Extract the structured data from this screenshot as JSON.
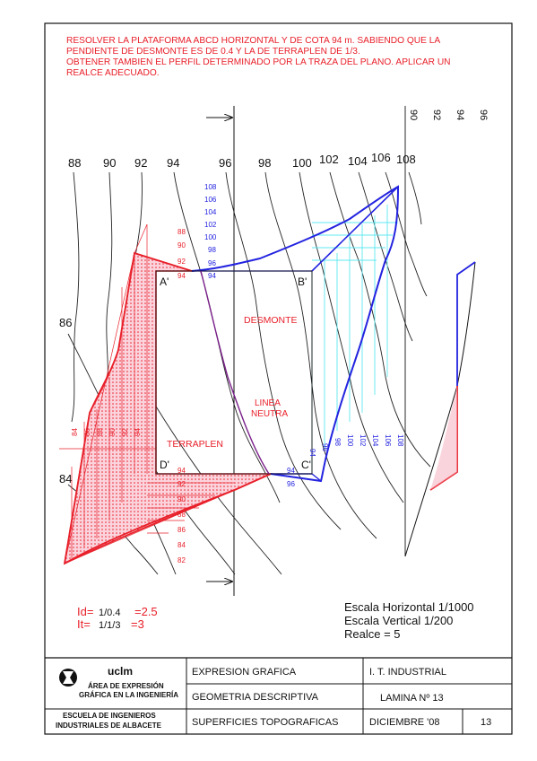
{
  "statement": [
    "RESOLVER LA PLATAFORMA ABCD HORIZONTAL Y DE COTA 94 m. SABIENDO QUE LA",
    "PENDIENTE DE DESMONTE ES DE 0.4 Y LA DE TERRAPLEN DE 1/3.",
    "OBTENER TAMBIEN EL PERFIL DETERMINADO POR LA TRAZA DEL PLANO. APLICAR UN",
    "REALCE ADECUADO."
  ],
  "contour_labels": [
    "88",
    "90",
    "92",
    "94",
    "96",
    "98",
    "100",
    "102",
    "104",
    "106",
    "108"
  ],
  "contour_labels_left": [
    "86",
    "84"
  ],
  "profile_labels": [
    "90",
    "92",
    "94",
    "96"
  ],
  "corner_labels": {
    "a": "A'",
    "b": "B'",
    "c": "C'",
    "d": "D'"
  },
  "zone_labels": {
    "desmonte": "DESMONTE",
    "linea1": "LINEA",
    "linea2": "NEUTRA",
    "terraplen": "TERRAPLEN"
  },
  "cut_scale_vertical": [
    "108",
    "106",
    "104",
    "102",
    "100",
    "98",
    "96",
    "94"
  ],
  "cut_scale_bottom": [
    "94",
    "96",
    "98",
    "100",
    "102",
    "104",
    "106",
    "108"
  ],
  "fill_scale_vertical": [
    "88",
    "90",
    "92",
    "94"
  ],
  "fill_scale_bottom": [
    "94",
    "92",
    "90",
    "88",
    "86",
    "84",
    "82"
  ],
  "fill_scale_left": [
    "84",
    "86",
    "88",
    "90",
    "92",
    "94"
  ],
  "cut_marks": {
    "a": "96",
    "b": "94",
    "c": "94",
    "d": "96"
  },
  "slopes": {
    "id": "Id=",
    "id_val": "1/0.4",
    "id_res": "=2.5",
    "it": "It=",
    "it_val": "1/1/3",
    "it_res": "=3"
  },
  "scales": [
    "Escala Horizontal 1/1000",
    "Escala Vertical 1/200",
    "Realce = 5"
  ],
  "title_block": {
    "org_logo": "uclm",
    "org_line1": "ÁREA DE EXPRESIÓN",
    "org_line2": "GRÁFICA EN LA INGENIERÍA",
    "school1": "ESCUELA DE INGENIEROS",
    "school2": "INDUSTRIALES DE ALBACETE",
    "subject": "EXPRESION GRAFICA",
    "topic": "GEOMETRIA DESCRIPTIVA",
    "sheet_title": "SUPERFICIES TOPOGRAFICAS",
    "degree": "I. T. INDUSTRIAL",
    "sheet_no": "LAMINA Nº 13",
    "date": "DICIEMBRE '08",
    "number": "13"
  },
  "colors": {
    "red": "#e8202a",
    "blue": "#2323e0",
    "cyan": "#5fe8f0",
    "purple": "#7a1f8a",
    "pink": "#f7b8c4"
  }
}
